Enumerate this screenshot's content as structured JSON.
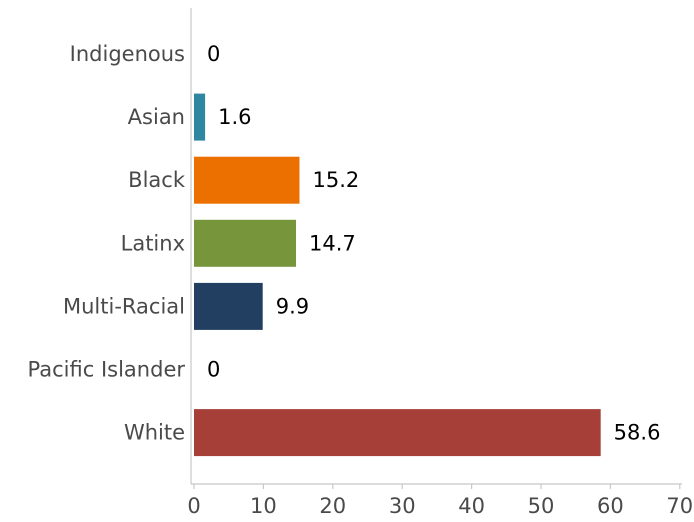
{
  "chart_data": {
    "type": "bar",
    "orientation": "horizontal",
    "categories": [
      "Indigenous",
      "Asian",
      "Black",
      "Latinx",
      "Multi-Racial",
      "Pacific Islander",
      "White"
    ],
    "values": [
      0,
      1.6,
      15.2,
      14.7,
      9.9,
      0,
      58.6
    ],
    "value_labels": [
      "0",
      "1.6",
      "15.2",
      "14.7",
      "9.9",
      "0",
      "58.6"
    ],
    "colors": [
      "#3a8aa0",
      "#2e86a0",
      "#ec7000",
      "#77953b",
      "#223f62",
      "#888888",
      "#a63f38"
    ],
    "xlim": [
      0,
      70
    ],
    "xticks": [
      0,
      10,
      20,
      30,
      40,
      50,
      60,
      70
    ],
    "grid": false,
    "legend": "none",
    "title": "",
    "xlabel": "",
    "ylabel": ""
  }
}
